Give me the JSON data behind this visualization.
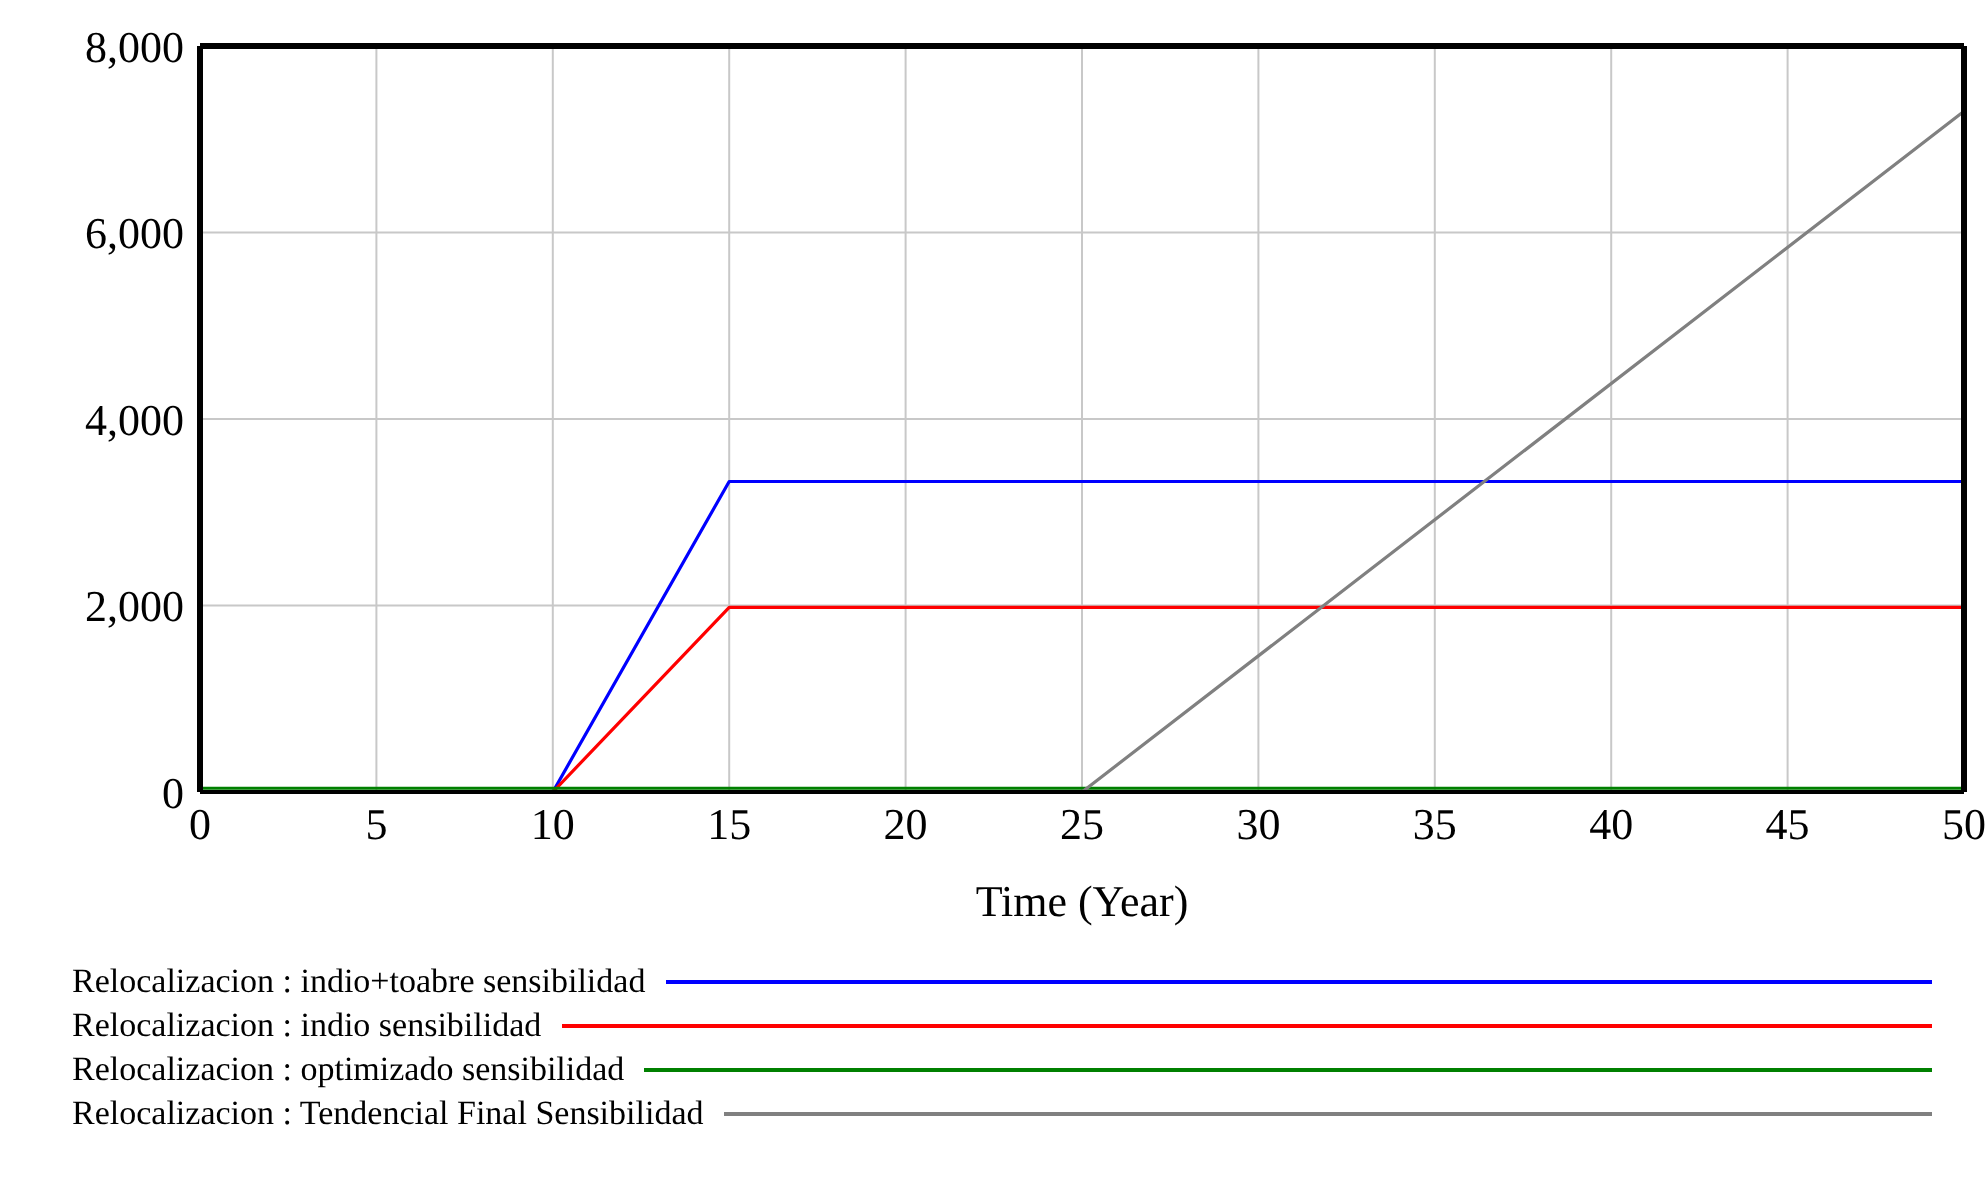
{
  "chart_data": {
    "type": "line",
    "xlabel": "Time (Year)",
    "x": [
      0,
      10,
      15,
      25,
      50
    ],
    "series": [
      {
        "name": "Relocalizacion : indio+toabre sensibilidad",
        "color": "#0000ff",
        "values": [
          0,
          0,
          3330,
          3330,
          3330
        ]
      },
      {
        "name": "Relocalizacion : indio sensibilidad",
        "color": "#ff0000",
        "values": [
          0,
          0,
          1980,
          1980,
          1980
        ]
      },
      {
        "name": "Relocalizacion : optimizado sensibilidad",
        "color": "#008000",
        "values": [
          40,
          40,
          40,
          40,
          40
        ]
      },
      {
        "name": "Relocalizacion : Tendencial Final Sensibilidad",
        "color": "#808080",
        "values": [
          0,
          0,
          0,
          0,
          7300
        ]
      }
    ],
    "xlim": [
      0,
      50
    ],
    "xticks": [
      0,
      5,
      10,
      15,
      20,
      25,
      30,
      35,
      40,
      45,
      50
    ],
    "ylim": [
      0,
      8000
    ],
    "yticks": [
      {
        "value": 0,
        "label": "0"
      },
      {
        "value": 2000,
        "label": "2,000"
      },
      {
        "value": 4000,
        "label": "4,000"
      },
      {
        "value": 6000,
        "label": "6,000"
      },
      {
        "value": 8000,
        "label": "8,000"
      }
    ],
    "grid": true,
    "legend": "bottom",
    "marker": "none",
    "line_style": "solid"
  }
}
